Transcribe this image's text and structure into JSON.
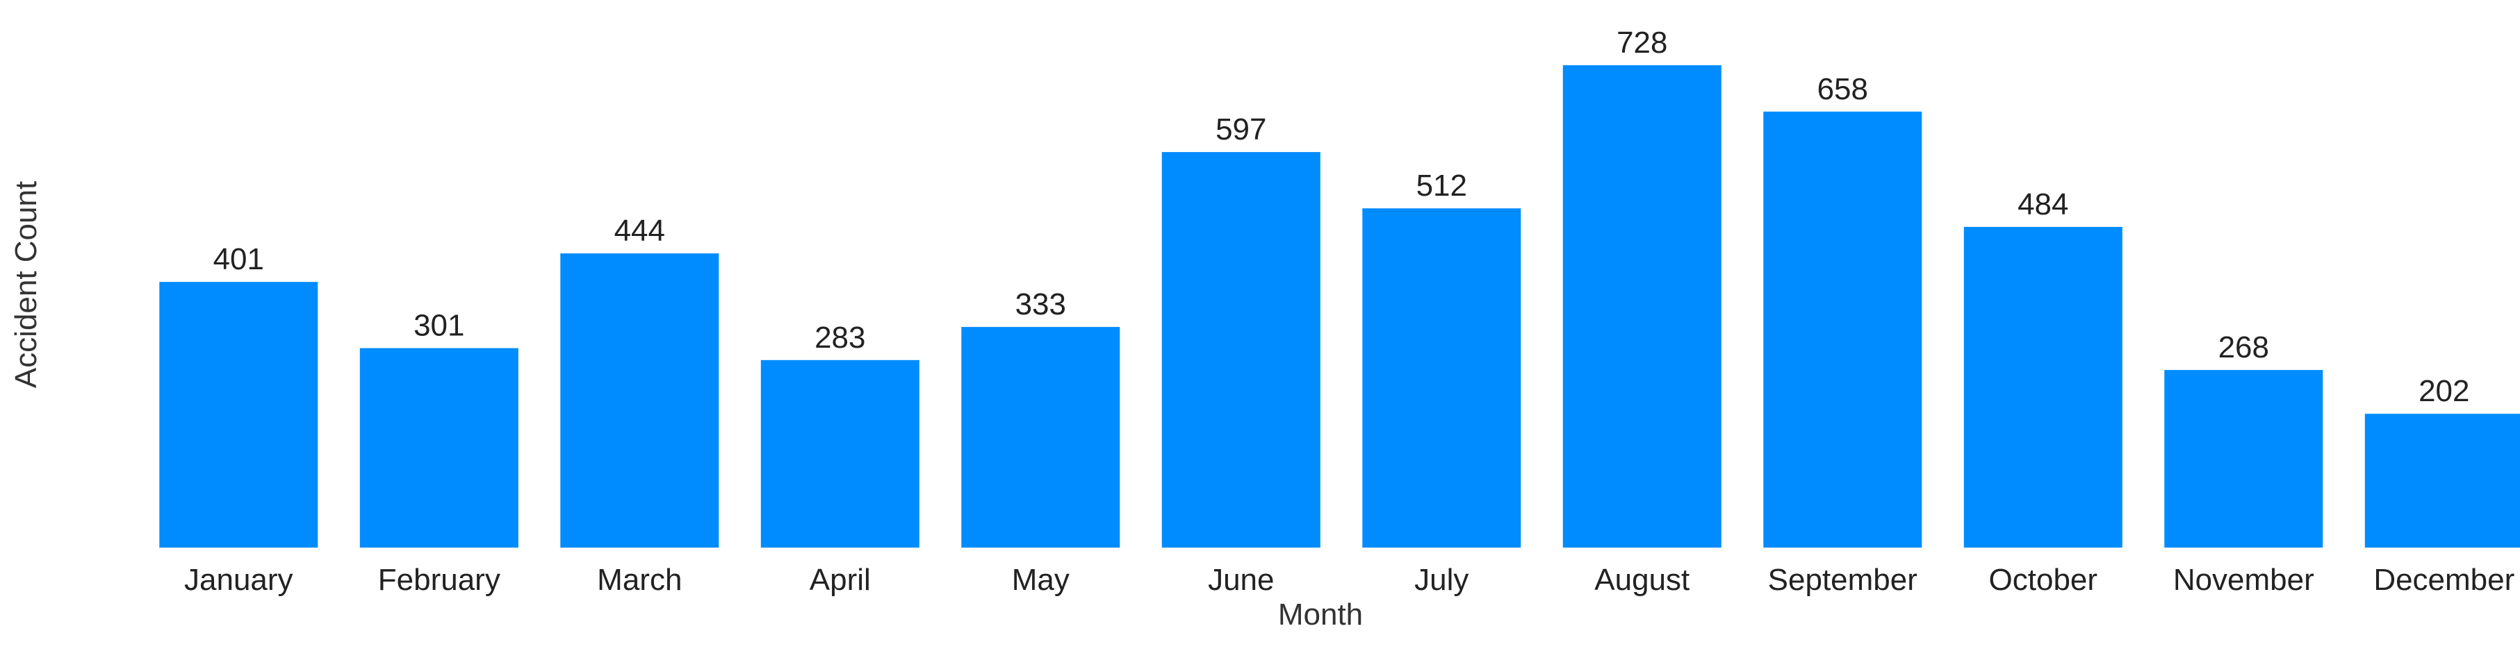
{
  "chart_data": {
    "type": "bar",
    "categories": [
      "January",
      "February",
      "March",
      "April",
      "May",
      "June",
      "July",
      "August",
      "September",
      "October",
      "November",
      "December"
    ],
    "values": [
      401,
      301,
      444,
      283,
      333,
      597,
      512,
      728,
      658,
      484,
      268,
      202
    ],
    "title": "",
    "xlabel": "Month",
    "ylabel": "Accident Count",
    "ylim": [
      0,
      728
    ],
    "grid": false,
    "legend": "none",
    "bar_color": "#008CFF",
    "data_labels": true
  }
}
